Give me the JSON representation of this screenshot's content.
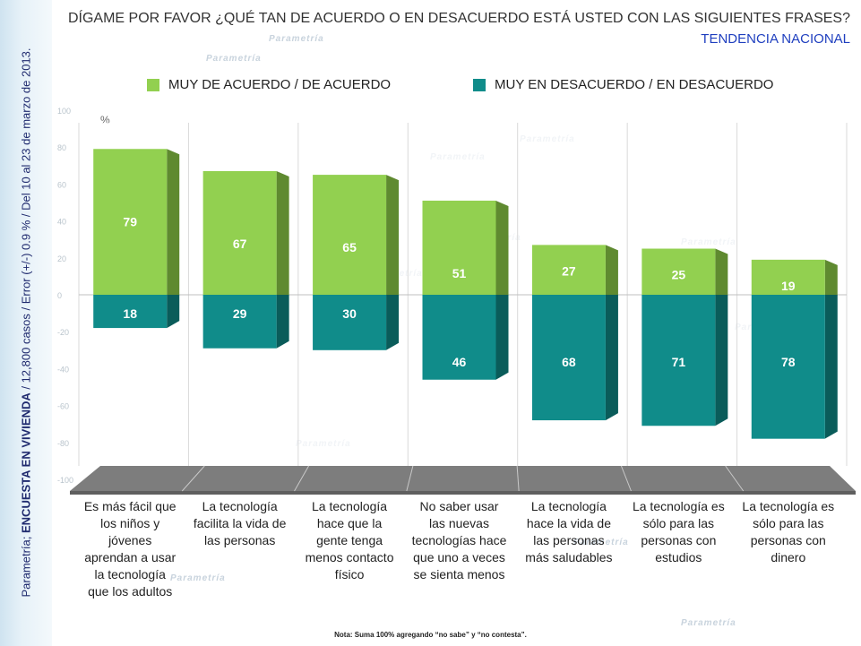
{
  "side_text": {
    "prefix": "Parametría; ",
    "bold": "ENCUESTA EN VIVIENDA",
    "rest": " / 12,800 casos / Error (+/-) 0.9 % / Del 10 al 23 de marzo de 2013."
  },
  "header": {
    "title": "DÍGAME POR FAVOR ¿QUÉ TAN DE ACUERDO O EN DESACUERDO ESTÁ USTED CON LAS SIGUIENTES FRASES?",
    "subtitle": "TENDENCIA NACIONAL"
  },
  "unit_label": "%",
  "watermark": "Parametría",
  "colors": {
    "agree": "#92d050",
    "agree_side": "#5f8a30",
    "agree_top": "#b4e07e",
    "disagree": "#108c8a",
    "disagree_side": "#0a5c5a",
    "floor": "#7d7d7d"
  },
  "chart_data": {
    "type": "bar",
    "categories": [
      "Es más fácil que los niños y jóvenes aprendan a usar la tecnología que los adultos",
      "La tecnología facilita la vida de las personas",
      "La tecnología hace que la gente tenga menos contacto físico",
      "No saber usar las nuevas tecnologías hace que uno a veces se sienta menos",
      "La tecnología hace la vida de las personas más saludables",
      "La tecnología es sólo para las personas con estudios",
      "La tecnología es sólo para las personas con dinero"
    ],
    "category_lines": [
      [
        "Es más fácil que",
        "los niños y",
        "jóvenes",
        "aprendan a usar",
        "la tecnología",
        "que los adultos"
      ],
      [
        "La tecnología",
        "facilita la vida de",
        "las personas"
      ],
      [
        "La tecnología",
        "hace que la",
        "gente tenga",
        "menos contacto",
        "físico"
      ],
      [
        "No saber usar",
        "las nuevas",
        "tecnologías hace",
        "que uno a veces",
        "se sienta menos"
      ],
      [
        "La tecnología",
        "hace la vida de",
        "las personas",
        "más saludables"
      ],
      [
        "La tecnología es",
        "sólo para las",
        "personas con",
        "estudios"
      ],
      [
        "La tecnología es",
        "sólo para las",
        "personas con",
        "dinero"
      ]
    ],
    "series": [
      {
        "name": "MUY DE ACUERDO / DE ACUERDO",
        "values": [
          79,
          67,
          65,
          51,
          27,
          25,
          19
        ]
      },
      {
        "name": "MUY EN DESACUERDO / EN DESACUERDO",
        "values": [
          18,
          29,
          30,
          46,
          68,
          71,
          78
        ]
      }
    ],
    "ylim": [
      -100,
      100
    ],
    "y_ticks": [
      100,
      80,
      60,
      40,
      20,
      0,
      -20,
      -40,
      -60,
      -80,
      -100
    ],
    "grid": true
  },
  "note": "Nota: Suma 100% agregando “no sabe” y “no contesta”."
}
